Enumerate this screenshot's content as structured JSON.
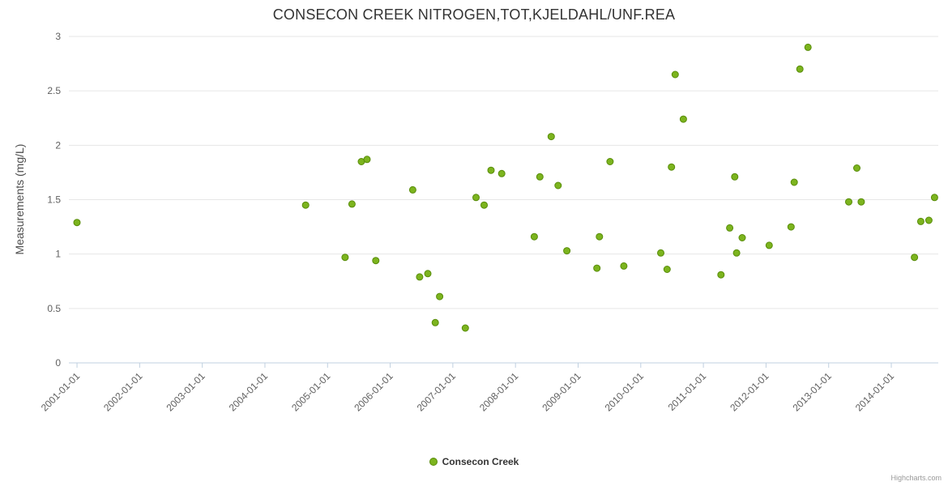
{
  "credits": "Highcharts.com",
  "legend": {
    "label": "Consecon Creek"
  },
  "colors": {
    "point": "#7cb41e",
    "point_stroke": "#588c0a",
    "grid": "#e6e6e6",
    "axis_line": "#c0d0e0",
    "axis_text": "#606060",
    "title_text": "#333333"
  },
  "chart_data": {
    "type": "scatter",
    "title": "CONSECON CREEK NITROGEN,TOT,KJELDAHL/UNF.REA",
    "xlabel": "",
    "ylabel": "Measurements (mg/L)",
    "ylim": [
      0,
      3
    ],
    "yticks": [
      0,
      0.5,
      1,
      1.5,
      2,
      2.5,
      3
    ],
    "xlim": [
      2000.87,
      2014.75
    ],
    "xtick_positions": [
      2001,
      2002,
      2003,
      2004,
      2005,
      2006,
      2007,
      2008,
      2009,
      2010,
      2011,
      2012,
      2013,
      2014
    ],
    "xtick_labels": [
      "2001-01-01",
      "2002-01-01",
      "2003-01-01",
      "2004-01-01",
      "2005-01-01",
      "2006-01-01",
      "2007-01-01",
      "2008-01-01",
      "2009-01-01",
      "2010-01-01",
      "2011-01-01",
      "2012-01-01",
      "2013-01-01",
      "2014-01-01"
    ],
    "grid": "horizontal",
    "legend_position": "bottom",
    "series": [
      {
        "name": "Consecon Creek",
        "color": "#7cb41e",
        "points": [
          [
            2001.0,
            1.29
          ],
          [
            2004.65,
            1.45
          ],
          [
            2005.28,
            0.97
          ],
          [
            2005.39,
            1.46
          ],
          [
            2005.54,
            1.85
          ],
          [
            2005.63,
            1.87
          ],
          [
            2005.77,
            0.94
          ],
          [
            2006.36,
            1.59
          ],
          [
            2006.47,
            0.79
          ],
          [
            2006.6,
            0.82
          ],
          [
            2006.72,
            0.37
          ],
          [
            2006.79,
            0.61
          ],
          [
            2007.2,
            0.32
          ],
          [
            2007.37,
            1.52
          ],
          [
            2007.5,
            1.45
          ],
          [
            2007.61,
            1.77
          ],
          [
            2007.78,
            1.74
          ],
          [
            2008.3,
            1.16
          ],
          [
            2008.39,
            1.71
          ],
          [
            2008.57,
            2.08
          ],
          [
            2008.68,
            1.63
          ],
          [
            2008.82,
            1.03
          ],
          [
            2009.3,
            0.87
          ],
          [
            2009.34,
            1.16
          ],
          [
            2009.51,
            1.85
          ],
          [
            2009.73,
            0.89
          ],
          [
            2010.32,
            1.01
          ],
          [
            2010.42,
            0.86
          ],
          [
            2010.49,
            1.8
          ],
          [
            2010.55,
            2.65
          ],
          [
            2010.68,
            2.24
          ],
          [
            2011.28,
            0.81
          ],
          [
            2011.42,
            1.24
          ],
          [
            2011.5,
            1.71
          ],
          [
            2011.53,
            1.01
          ],
          [
            2011.62,
            1.15
          ],
          [
            2012.05,
            1.08
          ],
          [
            2012.4,
            1.25
          ],
          [
            2012.45,
            1.66
          ],
          [
            2012.54,
            2.7
          ],
          [
            2012.67,
            2.9
          ],
          [
            2013.32,
            1.48
          ],
          [
            2013.45,
            1.79
          ],
          [
            2013.52,
            1.48
          ],
          [
            2014.37,
            0.97
          ],
          [
            2014.47,
            1.3
          ],
          [
            2014.6,
            1.31
          ],
          [
            2014.69,
            1.52
          ]
        ]
      }
    ]
  }
}
